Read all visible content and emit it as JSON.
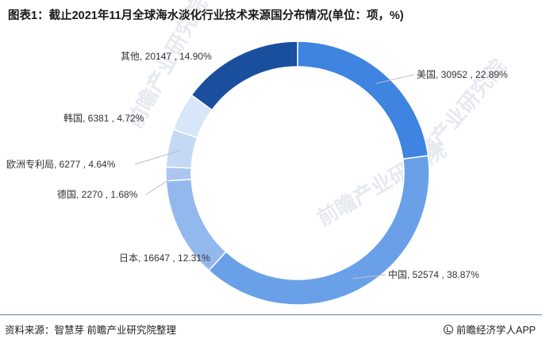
{
  "title": "图表1：截止2021年11月全球海水淡化行业技术来源国分布情况(单位：项，%)",
  "footer": {
    "source": "资料来源：智慧芽 前瞻产业研究院整理",
    "brand": "前瞻经济学人APP"
  },
  "watermark": {
    "left": "前瞻产业研究院",
    "center": "前瞻产业研究院",
    "right": "前瞻产业研究院"
  },
  "chart_data": {
    "type": "pie",
    "variant": "donut",
    "title": "图表1：截止2021年11月全球海水淡化行业技术来源国分布情况(单位：项，%)",
    "unit": "项",
    "start_angle_deg": 0,
    "direction": "clockwise",
    "slices": [
      {
        "name": "美国",
        "value": 30952,
        "percent": "22.89%",
        "label": "美国, 30952 , 22.89%",
        "color": "#3e84e0",
        "label_side": "right"
      },
      {
        "name": "中国",
        "value": 52574,
        "percent": "38.87%",
        "label": "中国, 52574 , 38.87%",
        "color": "#6aa0e8",
        "label_side": "right"
      },
      {
        "name": "日本",
        "value": 16647,
        "percent": "12.31%",
        "label": "日本, 16647 , 12.31%",
        "color": "#93b8ee",
        "label_side": "left"
      },
      {
        "name": "德国",
        "value": 2270,
        "percent": "1.68%",
        "label": "德国, 2270 , 1.68%",
        "color": "#a9c7f2",
        "label_side": "left"
      },
      {
        "name": "欧洲专利局",
        "value": 6277,
        "percent": "4.64%",
        "label": "欧洲专利局, 6277 , 4.64%",
        "color": "#c4d9f6",
        "label_side": "left"
      },
      {
        "name": "韩国",
        "value": 6381,
        "percent": "4.72%",
        "label": "韩国, 6381 , 4.72%",
        "color": "#d8e6f9",
        "label_side": "left"
      },
      {
        "name": "其他",
        "value": 20147,
        "percent": "14.90%",
        "label": "其他, 20147 , 14.90%",
        "color": "#1a4f9e",
        "label_side": "left"
      }
    ],
    "leader_line_color": "#bfbfbf",
    "legend": "none"
  }
}
